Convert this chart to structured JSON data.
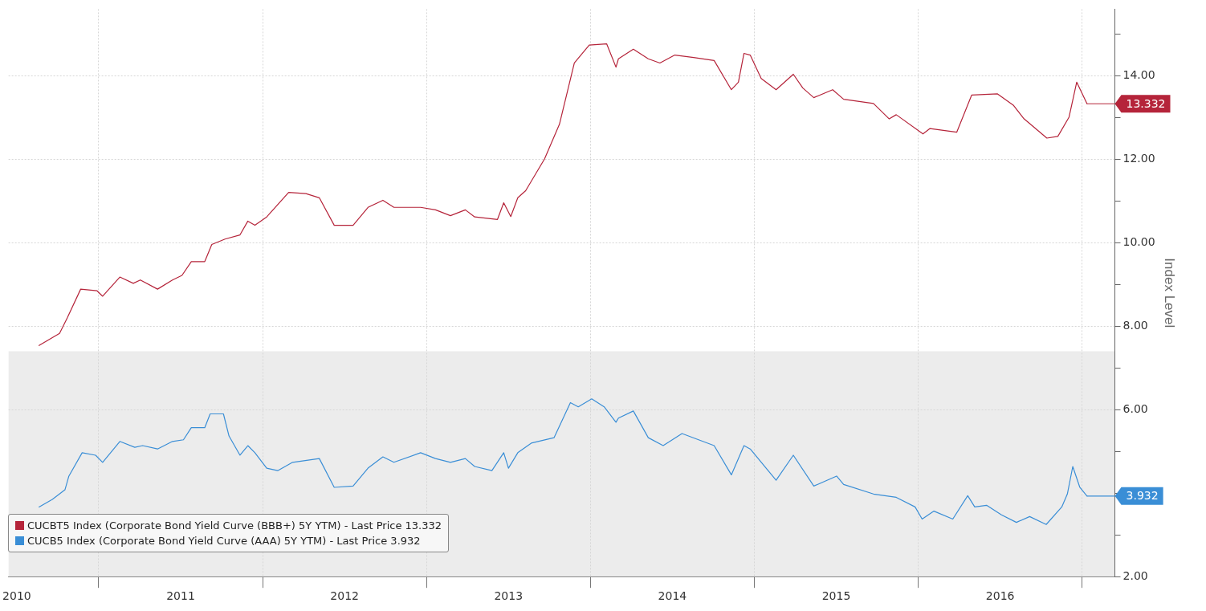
{
  "chart_data": {
    "type": "line",
    "ylabel": "Index Level",
    "xlim": [
      2010.45,
      2017.2
    ],
    "ylim": [
      2,
      15.6
    ],
    "xticks": [
      {
        "value": 2010.5,
        "label": "2010"
      },
      {
        "value": 2011,
        "label": null
      },
      {
        "value": 2011.5,
        "label": "2011"
      },
      {
        "value": 2012,
        "label": null
      },
      {
        "value": 2012.5,
        "label": "2012"
      },
      {
        "value": 2013,
        "label": null
      },
      {
        "value": 2013.5,
        "label": "2013"
      },
      {
        "value": 2014,
        "label": null
      },
      {
        "value": 2014.5,
        "label": "2014"
      },
      {
        "value": 2015,
        "label": null
      },
      {
        "value": 2015.5,
        "label": "2015"
      },
      {
        "value": 2016,
        "label": null
      },
      {
        "value": 2016.5,
        "label": "2016"
      },
      {
        "value": 2017,
        "label": null
      }
    ],
    "yticks": [
      {
        "value": 2,
        "label": "2.00"
      },
      {
        "value": 3,
        "label": null
      },
      {
        "value": 4,
        "label": null
      },
      {
        "value": 5,
        "label": null
      },
      {
        "value": 6,
        "label": "6.00"
      },
      {
        "value": 7,
        "label": null
      },
      {
        "value": 8,
        "label": "8.00"
      },
      {
        "value": 9,
        "label": null
      },
      {
        "value": 10,
        "label": "10.00"
      },
      {
        "value": 11,
        "label": null
      },
      {
        "value": 12,
        "label": "12.00"
      },
      {
        "value": 13,
        "label": null
      },
      {
        "value": 14,
        "label": "14.00"
      },
      {
        "value": 15,
        "label": null
      }
    ],
    "grid": true,
    "legend": "bottom left",
    "marker": "none",
    "line_style": "solid",
    "bands": [
      {
        "axis": "y",
        "from": 2,
        "to": 7.4,
        "color": "#ececec"
      }
    ],
    "annotations": [
      "13.332",
      "3.932"
    ],
    "series": [
      {
        "name": "CUCBT5 Index (Corporate Bond Yield Curve (BBB+) 5Y YTM) - Last Price 13.332",
        "color": "#b5243a",
        "x": [
          2010.636,
          2010.761,
          2010.808,
          2010.89,
          2010.99,
          2011.024,
          2011.129,
          2011.211,
          2011.254,
          2011.359,
          2011.45,
          2011.508,
          2011.565,
          2011.647,
          2011.69,
          2011.771,
          2011.862,
          2011.91,
          2011.953,
          2012.025,
          2012.159,
          2012.264,
          2012.346,
          2012.437,
          2012.552,
          2012.643,
          2012.734,
          2012.801,
          2012.964,
          2013.055,
          2013.146,
          2013.237,
          2013.294,
          2013.433,
          2013.471,
          2013.514,
          2013.557,
          2013.605,
          2013.72,
          2013.811,
          2013.902,
          2013.993,
          2014.099,
          2014.156,
          2014.171,
          2014.262,
          2014.353,
          2014.424,
          2014.515,
          2014.63,
          2014.755,
          2014.86,
          2014.903,
          2014.937,
          2014.975,
          2015.042,
          2015.133,
          2015.238,
          2015.296,
          2015.363,
          2015.478,
          2015.545,
          2015.727,
          2015.823,
          2015.866,
          2016.029,
          2016.072,
          2016.235,
          2016.326,
          2016.484,
          2016.58,
          2016.646,
          2016.785,
          2016.852,
          2016.92,
          2016.967,
          2017.03
        ],
        "values": [
          7.54,
          7.83,
          8.2,
          8.89,
          8.85,
          8.72,
          9.18,
          9.03,
          9.11,
          8.89,
          9.11,
          9.22,
          9.55,
          9.55,
          9.96,
          10.09,
          10.19,
          10.52,
          10.42,
          10.62,
          11.21,
          11.18,
          11.08,
          10.42,
          10.42,
          10.85,
          11.02,
          10.85,
          10.85,
          10.79,
          10.65,
          10.79,
          10.62,
          10.56,
          10.96,
          10.63,
          11.08,
          11.25,
          12.01,
          12.84,
          14.31,
          14.74,
          14.77,
          14.21,
          14.41,
          14.64,
          14.41,
          14.31,
          14.5,
          14.44,
          14.37,
          13.67,
          13.85,
          14.54,
          14.5,
          13.94,
          13.67,
          14.04,
          13.71,
          13.48,
          13.67,
          13.44,
          13.34,
          12.97,
          13.07,
          12.61,
          12.74,
          12.65,
          13.54,
          13.57,
          13.3,
          12.97,
          12.51,
          12.55,
          13.01,
          13.85,
          13.332
        ]
      },
      {
        "name": "CUCB5 Index (Corporate Bond Yield Curve (AAA) 5Y YTM) - Last Price 3.932",
        "color": "#3a8ed6",
        "x": [
          2010.636,
          2010.717,
          2010.794,
          2010.818,
          2010.899,
          2010.981,
          2011.024,
          2011.129,
          2011.22,
          2011.268,
          2011.359,
          2011.45,
          2011.517,
          2011.565,
          2011.647,
          2011.68,
          2011.761,
          2011.795,
          2011.862,
          2011.91,
          2011.953,
          2012.025,
          2012.092,
          2012.183,
          2012.346,
          2012.437,
          2012.552,
          2012.643,
          2012.734,
          2012.801,
          2012.964,
          2013.055,
          2013.146,
          2013.237,
          2013.294,
          2013.399,
          2013.471,
          2013.5,
          2013.557,
          2013.639,
          2013.778,
          2013.878,
          2013.926,
          2014.008,
          2014.084,
          2014.156,
          2014.171,
          2014.262,
          2014.353,
          2014.444,
          2014.559,
          2014.755,
          2014.86,
          2014.937,
          2014.975,
          2015.133,
          2015.238,
          2015.363,
          2015.502,
          2015.545,
          2015.727,
          2015.866,
          2015.981,
          2016.024,
          2016.096,
          2016.211,
          2016.302,
          2016.345,
          2016.417,
          2016.508,
          2016.599,
          2016.68,
          2016.781,
          2016.876,
          2016.91,
          2016.943,
          2016.986,
          2017.03
        ],
        "values": [
          3.67,
          3.85,
          4.08,
          4.41,
          4.97,
          4.91,
          4.74,
          5.24,
          5.1,
          5.14,
          5.06,
          5.24,
          5.28,
          5.57,
          5.57,
          5.9,
          5.9,
          5.37,
          4.91,
          5.14,
          4.97,
          4.6,
          4.54,
          4.74,
          4.83,
          4.14,
          4.17,
          4.6,
          4.87,
          4.74,
          4.97,
          4.83,
          4.74,
          4.83,
          4.64,
          4.54,
          4.97,
          4.6,
          4.97,
          5.2,
          5.33,
          6.17,
          6.07,
          6.26,
          6.07,
          5.7,
          5.8,
          5.97,
          5.33,
          5.14,
          5.43,
          5.14,
          4.44,
          5.14,
          5.06,
          4.31,
          4.91,
          4.17,
          4.41,
          4.21,
          3.98,
          3.9,
          3.67,
          3.38,
          3.57,
          3.38,
          3.94,
          3.67,
          3.71,
          3.48,
          3.3,
          3.44,
          3.25,
          3.67,
          3.98,
          4.64,
          4.14,
          3.932
        ]
      }
    ]
  }
}
